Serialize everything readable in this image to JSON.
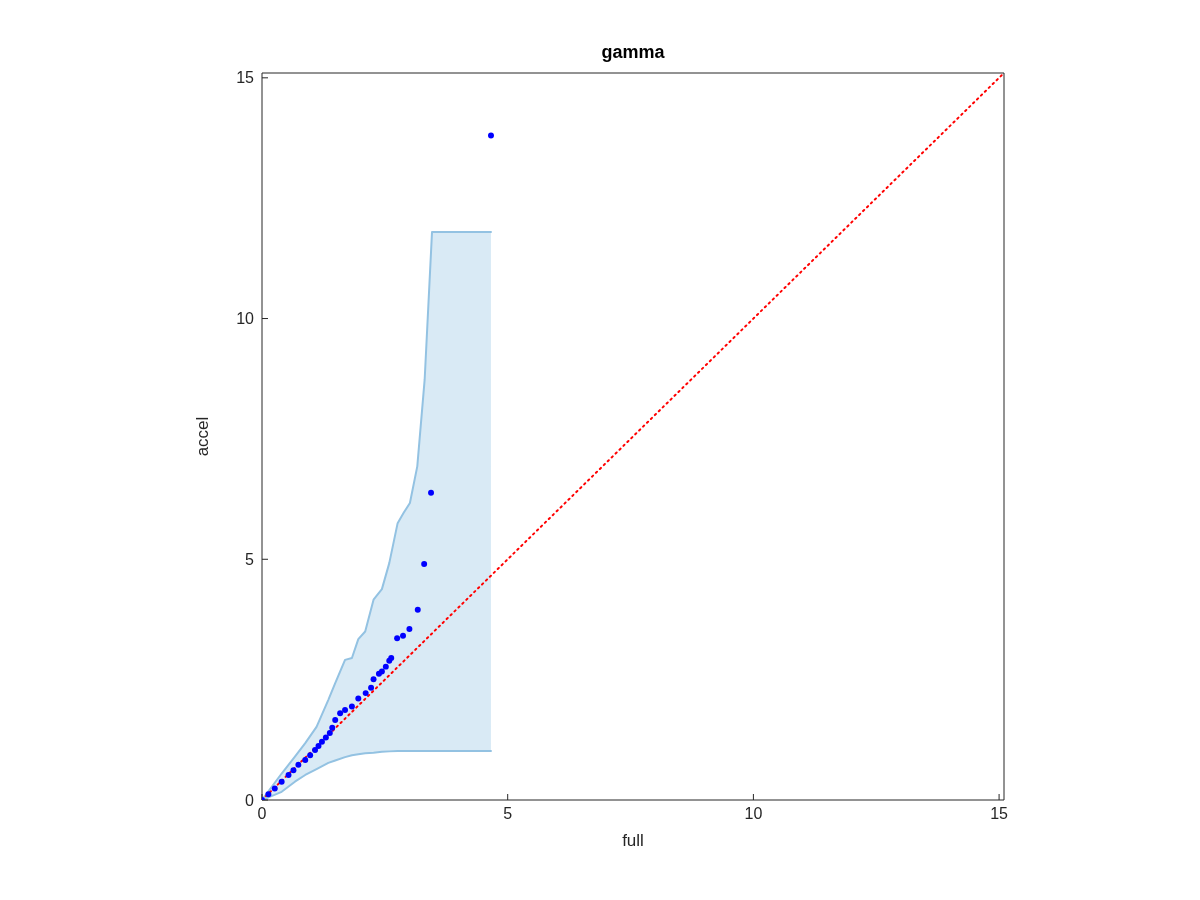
{
  "chart_data": {
    "type": "scatter",
    "title": "gamma",
    "xlabel": "full",
    "ylabel": "accel",
    "xlim": [
      0,
      15.1
    ],
    "ylim": [
      0,
      15.1
    ],
    "xticks": [
      0,
      5,
      10,
      15
    ],
    "yticks": [
      0,
      5,
      10,
      15
    ],
    "series": [
      {
        "type": "line",
        "color": "#93c2e2",
        "marker": "none",
        "x": [
          0,
          0.4,
          0.67,
          0.88,
          1.11,
          1.35,
          1.49,
          1.69,
          1.83,
          1.96,
          2.1,
          2.27,
          2.44,
          2.59,
          2.76,
          2.88,
          3.01,
          3.16,
          3.31,
          3.46,
          4.66
        ],
        "values": [
          0,
          0.55,
          0.9,
          1.18,
          1.52,
          2.08,
          2.43,
          2.91,
          2.95,
          3.34,
          3.5,
          4.16,
          4.38,
          4.92,
          5.75,
          5.96,
          6.17,
          6.93,
          8.73,
          11.8,
          11.8
        ]
      },
      {
        "type": "line",
        "color": "#93c2e2",
        "marker": "none",
        "x": [
          0,
          0.4,
          0.67,
          0.88,
          1.11,
          1.35,
          1.49,
          1.69,
          1.83,
          1.96,
          2.1,
          2.27,
          2.44,
          2.59,
          2.76,
          2.88,
          3.01,
          3.16,
          3.31,
          3.46,
          4.66
        ],
        "values": [
          0,
          0.17,
          0.38,
          0.52,
          0.64,
          0.77,
          0.82,
          0.89,
          0.93,
          0.95,
          0.97,
          0.98,
          1.0,
          1.01,
          1.02,
          1.02,
          1.02,
          1.02,
          1.02,
          1.02,
          1.02
        ]
      },
      {
        "type": "scatter",
        "color": "#0000ff",
        "marker": "circle",
        "x": [
          0,
          0.13,
          0.26,
          0.4,
          0.54,
          0.64,
          0.74,
          0.88,
          0.98,
          1.08,
          1.15,
          1.22,
          1.3,
          1.38,
          1.43,
          1.49,
          1.59,
          1.69,
          1.83,
          1.96,
          2.11,
          2.22,
          2.27,
          2.38,
          2.44,
          2.52,
          2.59,
          2.63,
          2.75,
          2.87,
          3.0,
          3.17,
          3.3,
          3.44,
          4.66
        ],
        "values": [
          0,
          0.12,
          0.24,
          0.38,
          0.52,
          0.62,
          0.73,
          0.83,
          0.93,
          1.04,
          1.12,
          1.21,
          1.3,
          1.39,
          1.5,
          1.66,
          1.8,
          1.87,
          1.94,
          2.11,
          2.22,
          2.33,
          2.51,
          2.62,
          2.67,
          2.77,
          2.89,
          2.95,
          3.36,
          3.41,
          3.55,
          3.95,
          4.9,
          6.38,
          13.8
        ]
      },
      {
        "type": "line",
        "color": "#ff0000",
        "line_style": "dotted",
        "marker": "none",
        "x": [
          0,
          15.1
        ],
        "values": [
          0,
          15.1
        ]
      }
    ]
  }
}
